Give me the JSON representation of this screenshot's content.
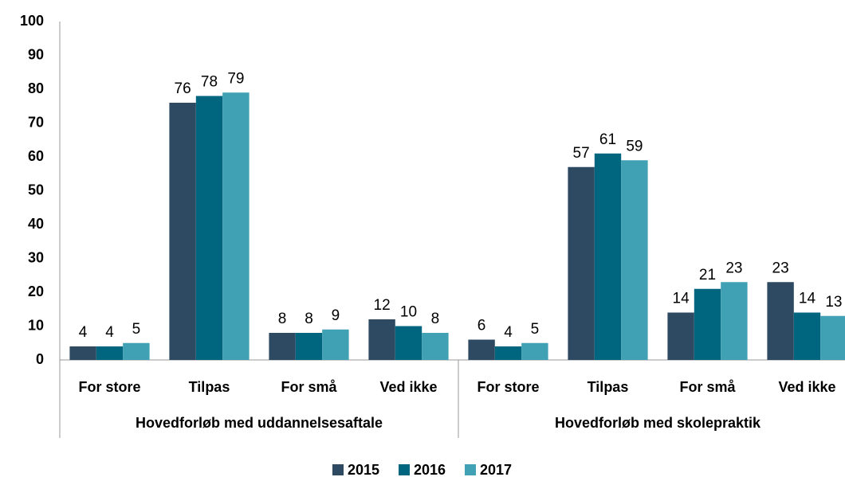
{
  "chart_data": {
    "type": "bar",
    "groups": [
      {
        "name": "Hovedforløb med uddannelsesaftale",
        "categories": [
          "For store",
          "Tilpas",
          "For små",
          "Ved ikke"
        ]
      },
      {
        "name": "Hovedforløb med skolepraktik",
        "categories": [
          "For store",
          "Tilpas",
          "For små",
          "Ved ikke"
        ]
      }
    ],
    "series": [
      {
        "name": "2015",
        "color": "#2e4a62",
        "values": [
          4,
          76,
          8,
          12,
          6,
          57,
          14,
          23
        ]
      },
      {
        "name": "2016",
        "color": "#006680",
        "values": [
          4,
          78,
          8,
          10,
          4,
          61,
          21,
          14
        ]
      },
      {
        "name": "2017",
        "color": "#40a0b4",
        "values": [
          5,
          79,
          9,
          8,
          5,
          59,
          23,
          13
        ]
      }
    ],
    "ylim": [
      0,
      100
    ],
    "yticks": [
      0,
      10,
      20,
      30,
      40,
      50,
      60,
      70,
      80,
      90,
      100
    ],
    "grid": false
  }
}
